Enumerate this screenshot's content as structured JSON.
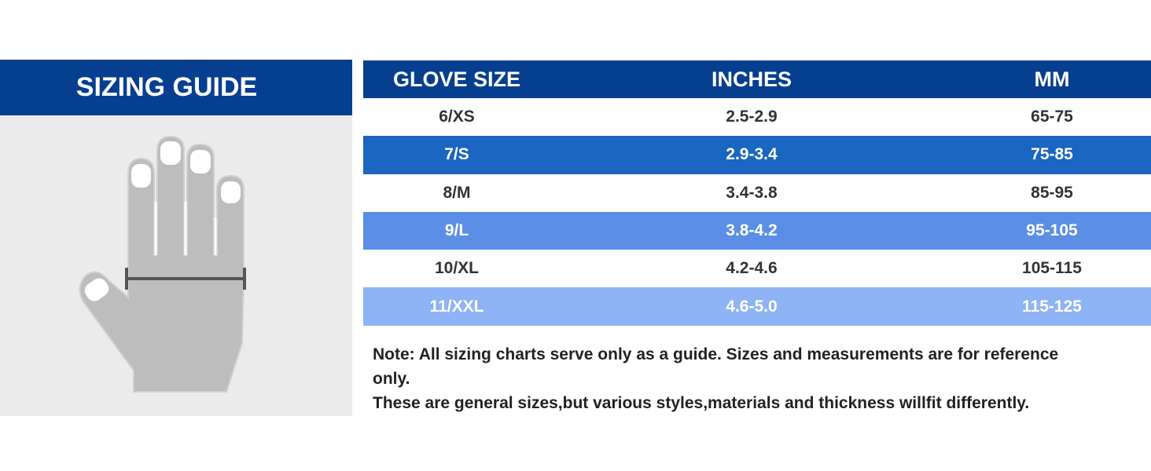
{
  "header": {
    "title": "SIZING GUIDE"
  },
  "table": {
    "columns": [
      "GLOVE SIZE",
      "INCHES",
      "MM"
    ],
    "rows": [
      [
        "6/XS",
        "2.5-2.9",
        "65-75"
      ],
      [
        "7/S",
        "2.9-3.4",
        "75-85"
      ],
      [
        "8/M",
        "3.4-3.8",
        "85-95"
      ],
      [
        "9/L",
        "3.8-4.2",
        "95-105"
      ],
      [
        "10/XL",
        "4.2-4.6",
        "105-115"
      ],
      [
        "11/XXL",
        "4.6-5.0",
        "115-125"
      ]
    ]
  },
  "note": [
    "Note: All sizing charts serve only as a guide. Sizes and measurements are for reference only.",
    "These are general sizes,but various styles,materials and thickness willfit differently."
  ]
}
